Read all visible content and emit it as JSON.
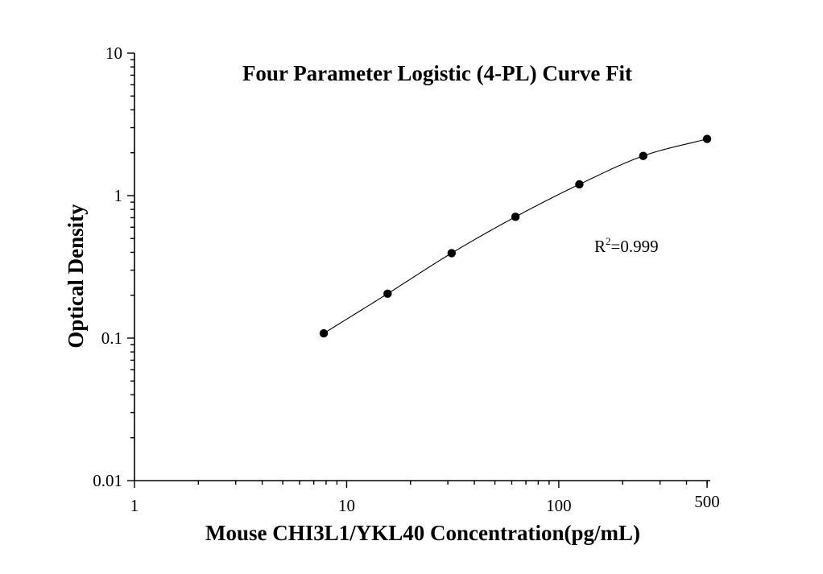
{
  "chart_data": {
    "type": "scatter",
    "title": "Four Parameter Logistic (4-PL) Curve Fit",
    "xlabel": "Mouse CHI3L1/YKL40 Concentration(pg/mL)",
    "ylabel": "Optical Density",
    "xscale": "log",
    "yscale": "log",
    "xlim": [
      1,
      500
    ],
    "ylim": [
      0.01,
      10
    ],
    "x_ticks": [
      {
        "value": 1,
        "label": "1"
      },
      {
        "value": 10,
        "label": "10"
      },
      {
        "value": 100,
        "label": "100"
      },
      {
        "value": 500,
        "label": "500"
      }
    ],
    "y_ticks": [
      {
        "value": 0.01,
        "label": "0.01"
      },
      {
        "value": 0.1,
        "label": "0.1"
      },
      {
        "value": 1,
        "label": "1"
      },
      {
        "value": 10,
        "label": "10"
      }
    ],
    "grid": false,
    "legend": "none",
    "series": [
      {
        "x": [
          7.8,
          15.6,
          31.25,
          62.5,
          125,
          250,
          500
        ],
        "y": [
          0.108,
          0.205,
          0.395,
          0.71,
          1.2,
          1.9,
          2.5
        ]
      }
    ],
    "fit_curve": {
      "type": "4-PL",
      "x_range": [
        7.8,
        500
      ]
    },
    "annotation": {
      "base": "R",
      "superscript": "2",
      "value": "=0.999"
    },
    "colors": {
      "points": "#000000",
      "curve": "#000000",
      "axes": "#000000"
    }
  }
}
